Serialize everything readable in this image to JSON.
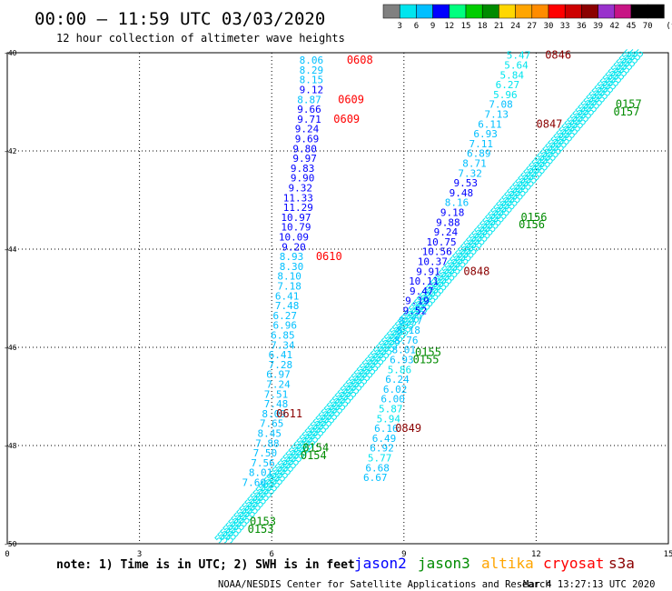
{
  "header": {
    "title": "00:00 – 11:59 UTC 03/03/2020",
    "subtitle": "12 hour collection of altimeter wave heights"
  },
  "color_scale": {
    "labels": [
      "3",
      "6",
      "9",
      "12",
      "15",
      "18",
      "21",
      "24",
      "27",
      "30",
      "33",
      "36",
      "39",
      "42",
      "45",
      "70"
    ],
    "unit": "(ft)",
    "colors": [
      "#808080",
      "#00e5ee",
      "#00bfff",
      "#0000ff",
      "#00ff7f",
      "#00cd00",
      "#008b00",
      "#ffd700",
      "#ffa500",
      "#ff8c00",
      "#ff0000",
      "#cd0000",
      "#8b0000",
      "#9932cc",
      "#c71585",
      "#000000",
      "#000000"
    ]
  },
  "footer": {
    "note": "note:  1) Time is in UTC;  2) SWH is in feet",
    "legend": [
      {
        "name": "jason2",
        "color": "#0000ff"
      },
      {
        "name": "jason3",
        "color": "#008b00"
      },
      {
        "name": "altika",
        "color": "#ffa500"
      },
      {
        "name": "cryosat",
        "color": "#ff0000"
      },
      {
        "name": "s3a",
        "color": "#8b0000"
      }
    ],
    "credit": "NOAA/NESDIS Center for Satellite Applications and Research",
    "timestamp": "Mar  4 13:27:13 UTC 2020"
  },
  "chart_data": {
    "type": "scatter",
    "title": "00:00 – 11:59 UTC 03/03/2020",
    "subtitle": "12 hour collection of altimeter wave heights",
    "xlim": [
      0,
      15
    ],
    "ylim": [
      -50,
      -40
    ],
    "xticks": [
      "0",
      "3",
      "6",
      "9",
      "12",
      "15"
    ],
    "yticks": [
      "-40",
      "-42",
      "-44",
      "-46",
      "-48",
      "-50"
    ],
    "grid": true,
    "swh_points": [
      {
        "track": "A",
        "x": 6.9,
        "y": -40.15,
        "value": "8.06",
        "color": "#00bfff"
      },
      {
        "track": "A",
        "x": 6.9,
        "y": -40.35,
        "value": "8.29",
        "color": "#00bfff"
      },
      {
        "track": "A",
        "x": 6.9,
        "y": -40.55,
        "value": "8.15",
        "color": "#00bfff"
      },
      {
        "track": "A",
        "x": 6.9,
        "y": -40.75,
        "value": "9.12",
        "color": "#0000ff"
      },
      {
        "track": "A",
        "x": 6.85,
        "y": -40.95,
        "value": "8.87",
        "color": "#00bfff"
      },
      {
        "track": "A",
        "x": 6.85,
        "y": -41.15,
        "value": "9.66",
        "color": "#0000ff"
      },
      {
        "track": "A",
        "x": 6.85,
        "y": -41.35,
        "value": "9.71",
        "color": "#0000ff"
      },
      {
        "track": "A",
        "x": 6.8,
        "y": -41.55,
        "value": "9.24",
        "color": "#0000ff"
      },
      {
        "track": "A",
        "x": 6.8,
        "y": -41.75,
        "value": "9.69",
        "color": "#0000ff"
      },
      {
        "track": "A",
        "x": 6.75,
        "y": -41.95,
        "value": "9.80",
        "color": "#0000ff"
      },
      {
        "track": "A",
        "x": 6.75,
        "y": -42.15,
        "value": "9.97",
        "color": "#0000ff"
      },
      {
        "track": "A",
        "x": 6.7,
        "y": -42.35,
        "value": "9.83",
        "color": "#0000ff"
      },
      {
        "track": "A",
        "x": 6.7,
        "y": -42.55,
        "value": "9.90",
        "color": "#0000ff"
      },
      {
        "track": "A",
        "x": 6.65,
        "y": -42.75,
        "value": "9.32",
        "color": "#0000ff"
      },
      {
        "track": "A",
        "x": 6.6,
        "y": -42.95,
        "value": "11.33",
        "color": "#0000ff"
      },
      {
        "track": "A",
        "x": 6.6,
        "y": -43.15,
        "value": "11.29",
        "color": "#0000ff"
      },
      {
        "track": "A",
        "x": 6.55,
        "y": -43.35,
        "value": "10.97",
        "color": "#0000ff"
      },
      {
        "track": "A",
        "x": 6.55,
        "y": -43.55,
        "value": "10.79",
        "color": "#0000ff"
      },
      {
        "track": "A",
        "x": 6.5,
        "y": -43.75,
        "value": "10.09",
        "color": "#0000ff"
      },
      {
        "track": "A",
        "x": 6.5,
        "y": -43.95,
        "value": "9.20",
        "color": "#0000ff"
      },
      {
        "track": "A",
        "x": 6.45,
        "y": -44.15,
        "value": "8.93",
        "color": "#00bfff"
      },
      {
        "track": "A",
        "x": 6.45,
        "y": -44.35,
        "value": "8.30",
        "color": "#00bfff"
      },
      {
        "track": "A",
        "x": 6.4,
        "y": -44.55,
        "value": "8.10",
        "color": "#00bfff"
      },
      {
        "track": "A",
        "x": 6.4,
        "y": -44.75,
        "value": "7.18",
        "color": "#00bfff"
      },
      {
        "track": "A",
        "x": 6.35,
        "y": -44.95,
        "value": "6.41",
        "color": "#00bfff"
      },
      {
        "track": "A",
        "x": 6.35,
        "y": -45.15,
        "value": "7.48",
        "color": "#00bfff"
      },
      {
        "track": "A",
        "x": 6.3,
        "y": -45.35,
        "value": "6.27",
        "color": "#00bfff"
      },
      {
        "track": "A",
        "x": 6.3,
        "y": -45.55,
        "value": "6.96",
        "color": "#00bfff"
      },
      {
        "track": "A",
        "x": 6.25,
        "y": -45.75,
        "value": "6.85",
        "color": "#00bfff"
      },
      {
        "track": "A",
        "x": 6.25,
        "y": -45.95,
        "value": "7.34",
        "color": "#00bfff"
      },
      {
        "track": "A",
        "x": 6.2,
        "y": -46.15,
        "value": "6.41",
        "color": "#00bfff"
      },
      {
        "track": "A",
        "x": 6.2,
        "y": -46.35,
        "value": "7.28",
        "color": "#00bfff"
      },
      {
        "track": "A",
        "x": 6.15,
        "y": -46.55,
        "value": "6.97",
        "color": "#00bfff"
      },
      {
        "track": "A",
        "x": 6.15,
        "y": -46.75,
        "value": "7.24",
        "color": "#00bfff"
      },
      {
        "track": "A",
        "x": 6.1,
        "y": -46.95,
        "value": "7.51",
        "color": "#00bfff"
      },
      {
        "track": "A",
        "x": 6.1,
        "y": -47.15,
        "value": "7.48",
        "color": "#00bfff"
      },
      {
        "track": "A",
        "x": 6.05,
        "y": -47.35,
        "value": "8.09",
        "color": "#00bfff"
      },
      {
        "track": "A",
        "x": 6.0,
        "y": -47.55,
        "value": "7.65",
        "color": "#00bfff"
      },
      {
        "track": "A",
        "x": 5.95,
        "y": -47.75,
        "value": "8.45",
        "color": "#00bfff"
      },
      {
        "track": "A",
        "x": 5.9,
        "y": -47.95,
        "value": "7.88",
        "color": "#00bfff"
      },
      {
        "track": "A",
        "x": 5.85,
        "y": -48.15,
        "value": "7.50",
        "color": "#00bfff"
      },
      {
        "track": "A",
        "x": 5.8,
        "y": -48.35,
        "value": "7.56",
        "color": "#00bfff"
      },
      {
        "track": "A",
        "x": 5.75,
        "y": -48.55,
        "value": "8.01",
        "color": "#00bfff"
      },
      {
        "track": "A",
        "x": 5.6,
        "y": -48.75,
        "value": "7.60",
        "color": "#00bfff"
      },
      {
        "track": "C",
        "x": 11.6,
        "y": -40.05,
        "value": "5.47",
        "color": "#00e5ee"
      },
      {
        "track": "C",
        "x": 11.55,
        "y": -40.25,
        "value": "5.64",
        "color": "#00e5ee"
      },
      {
        "track": "C",
        "x": 11.45,
        "y": -40.45,
        "value": "5.84",
        "color": "#00e5ee"
      },
      {
        "track": "C",
        "x": 11.35,
        "y": -40.65,
        "value": "6.27",
        "color": "#00e5ee"
      },
      {
        "track": "C",
        "x": 11.3,
        "y": -40.85,
        "value": "5.96",
        "color": "#00e5ee"
      },
      {
        "track": "C",
        "x": 11.2,
        "y": -41.05,
        "value": "7.08",
        "color": "#00bfff"
      },
      {
        "track": "C",
        "x": 11.1,
        "y": -41.25,
        "value": "7.13",
        "color": "#00bfff"
      },
      {
        "track": "C",
        "x": 10.95,
        "y": -41.45,
        "value": "6.11",
        "color": "#00bfff"
      },
      {
        "track": "C",
        "x": 10.85,
        "y": -41.65,
        "value": "6.93",
        "color": "#00bfff"
      },
      {
        "track": "C",
        "x": 10.75,
        "y": -41.85,
        "value": "7.11",
        "color": "#00bfff"
      },
      {
        "track": "C",
        "x": 10.7,
        "y": -42.05,
        "value": "6.89",
        "color": "#00bfff"
      },
      {
        "track": "C",
        "x": 10.6,
        "y": -42.25,
        "value": "8.71",
        "color": "#00bfff"
      },
      {
        "track": "C",
        "x": 10.5,
        "y": -42.45,
        "value": "7.32",
        "color": "#00bfff"
      },
      {
        "track": "C",
        "x": 10.4,
        "y": -42.65,
        "value": "9.53",
        "color": "#0000ff"
      },
      {
        "track": "C",
        "x": 10.3,
        "y": -42.85,
        "value": "9.48",
        "color": "#0000ff"
      },
      {
        "track": "C",
        "x": 10.2,
        "y": -43.05,
        "value": "8.16",
        "color": "#00bfff"
      },
      {
        "track": "C",
        "x": 10.1,
        "y": -43.25,
        "value": "9.18",
        "color": "#0000ff"
      },
      {
        "track": "C",
        "x": 10.0,
        "y": -43.45,
        "value": "9.88",
        "color": "#0000ff"
      },
      {
        "track": "C",
        "x": 9.95,
        "y": -43.65,
        "value": "9.24",
        "color": "#0000ff"
      },
      {
        "track": "C",
        "x": 9.85,
        "y": -43.85,
        "value": "10.75",
        "color": "#0000ff"
      },
      {
        "track": "C",
        "x": 9.75,
        "y": -44.05,
        "value": "10.56",
        "color": "#0000ff"
      },
      {
        "track": "C",
        "x": 9.65,
        "y": -44.25,
        "value": "10.37",
        "color": "#0000ff"
      },
      {
        "track": "C",
        "x": 9.55,
        "y": -44.45,
        "value": "9.91",
        "color": "#0000ff"
      },
      {
        "track": "C",
        "x": 9.45,
        "y": -44.65,
        "value": "10.11",
        "color": "#0000ff"
      },
      {
        "track": "C",
        "x": 9.4,
        "y": -44.85,
        "value": "9.47",
        "color": "#0000ff"
      },
      {
        "track": "C",
        "x": 9.3,
        "y": -45.05,
        "value": "9.19",
        "color": "#0000ff"
      },
      {
        "track": "C",
        "x": 9.25,
        "y": -45.25,
        "value": "9.52",
        "color": "#0000ff"
      },
      {
        "track": "C",
        "x": 9.15,
        "y": -45.45,
        "value": "8.77",
        "color": "#00bfff"
      },
      {
        "track": "C",
        "x": 9.1,
        "y": -45.65,
        "value": "8.18",
        "color": "#00bfff"
      },
      {
        "track": "C",
        "x": 9.05,
        "y": -45.85,
        "value": "8.76",
        "color": "#00bfff"
      },
      {
        "track": "C",
        "x": 9.0,
        "y": -46.05,
        "value": "8.01",
        "color": "#00bfff"
      },
      {
        "track": "C",
        "x": 8.95,
        "y": -46.25,
        "value": "6.93",
        "color": "#00bfff"
      },
      {
        "track": "C",
        "x": 8.9,
        "y": -46.45,
        "value": "5.86",
        "color": "#00e5ee"
      },
      {
        "track": "C",
        "x": 8.85,
        "y": -46.65,
        "value": "6.24",
        "color": "#00bfff"
      },
      {
        "track": "C",
        "x": 8.8,
        "y": -46.85,
        "value": "6.02",
        "color": "#00bfff"
      },
      {
        "track": "C",
        "x": 8.75,
        "y": -47.05,
        "value": "6.00",
        "color": "#00bfff"
      },
      {
        "track": "C",
        "x": 8.7,
        "y": -47.25,
        "value": "5.87",
        "color": "#00e5ee"
      },
      {
        "track": "C",
        "x": 8.65,
        "y": -47.45,
        "value": "5.94",
        "color": "#00e5ee"
      },
      {
        "track": "C",
        "x": 8.6,
        "y": -47.65,
        "value": "6.16",
        "color": "#00bfff"
      },
      {
        "track": "C",
        "x": 8.55,
        "y": -47.85,
        "value": "6.49",
        "color": "#00bfff"
      },
      {
        "track": "C",
        "x": 8.5,
        "y": -48.05,
        "value": "6.92",
        "color": "#00bfff"
      },
      {
        "track": "C",
        "x": 8.45,
        "y": -48.25,
        "value": "5.77",
        "color": "#00e5ee"
      },
      {
        "track": "C",
        "x": 8.4,
        "y": -48.45,
        "value": "6.68",
        "color": "#00bfff"
      },
      {
        "track": "C",
        "x": 8.35,
        "y": -48.65,
        "value": "6.67",
        "color": "#00bfff"
      }
    ],
    "time_labels": [
      {
        "x": 8.0,
        "y": -40.15,
        "text": "0608",
        "color": "#ff0000"
      },
      {
        "x": 7.8,
        "y": -40.95,
        "text": "0609",
        "color": "#ff0000"
      },
      {
        "x": 7.7,
        "y": -41.35,
        "text": "0609",
        "color": "#ff0000"
      },
      {
        "x": 7.3,
        "y": -44.15,
        "text": "0610",
        "color": "#ff0000"
      },
      {
        "x": 6.4,
        "y": -47.35,
        "text": "0611",
        "color": "#8b0000"
      },
      {
        "x": 12.5,
        "y": -40.05,
        "text": "0846",
        "color": "#8b0000"
      },
      {
        "x": 12.3,
        "y": -41.45,
        "text": "0847",
        "color": "#8b0000"
      },
      {
        "x": 10.65,
        "y": -44.45,
        "text": "0848",
        "color": "#8b0000"
      },
      {
        "x": 9.1,
        "y": -47.65,
        "text": "0849",
        "color": "#8b0000"
      },
      {
        "x": 14.1,
        "y": -41.05,
        "text": "0157",
        "color": "#008b00"
      },
      {
        "x": 14.05,
        "y": -41.2,
        "text": "0157",
        "color": "#008b00"
      },
      {
        "x": 11.95,
        "y": -43.35,
        "text": "0156",
        "color": "#008b00"
      },
      {
        "x": 11.9,
        "y": -43.5,
        "text": "0156",
        "color": "#008b00"
      },
      {
        "x": 9.55,
        "y": -46.1,
        "text": "0155",
        "color": "#008b00"
      },
      {
        "x": 9.5,
        "y": -46.25,
        "text": "0155",
        "color": "#008b00"
      },
      {
        "x": 7.0,
        "y": -48.05,
        "text": "0154",
        "color": "#008b00"
      },
      {
        "x": 6.95,
        "y": -48.2,
        "text": "0154",
        "color": "#008b00"
      },
      {
        "x": 5.8,
        "y": -49.55,
        "text": "0153",
        "color": "#008b00"
      },
      {
        "x": 5.75,
        "y": -49.7,
        "text": "0153",
        "color": "#008b00"
      }
    ],
    "dense_track": {
      "start": [
        4.8,
        -50.0
      ],
      "end": [
        14.1,
        -40.1
      ],
      "color": "#00e5ee",
      "glyph": "5"
    }
  }
}
